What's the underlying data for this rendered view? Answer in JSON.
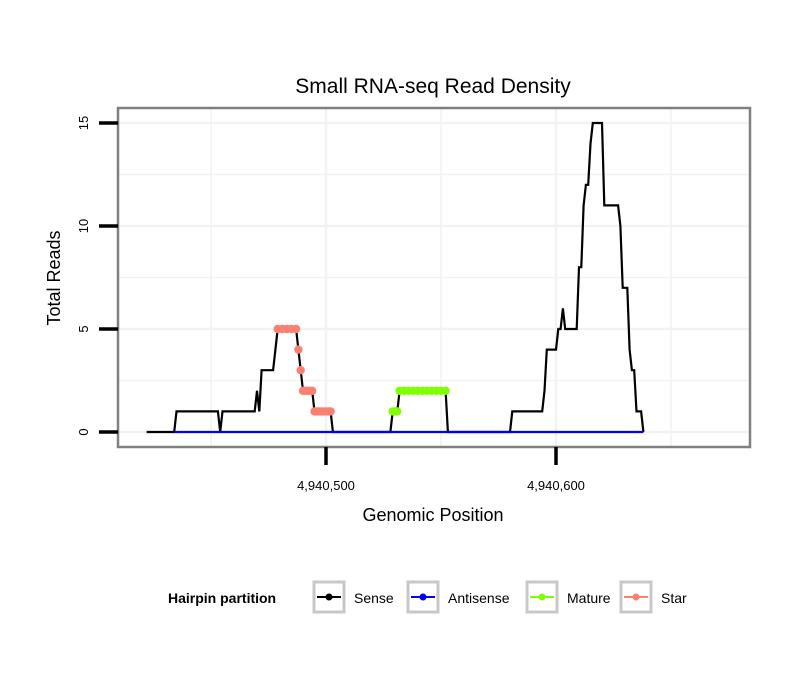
{
  "chart_data": {
    "type": "line",
    "title": "Small RNA-seq Read Density",
    "xlabel": "Genomic Position",
    "ylabel": "Total Reads",
    "xlim": [
      4940412,
      4940684
    ],
    "ylim": [
      -0.75,
      15.8
    ],
    "x_ticks": [
      {
        "value": 4940500,
        "label": "4,940,500"
      },
      {
        "value": 4940600,
        "label": "4,940,600"
      }
    ],
    "y_ticks": [
      {
        "value": 0,
        "label": "0"
      },
      {
        "value": 5,
        "label": "5"
      },
      {
        "value": 10,
        "label": "10"
      },
      {
        "value": 15,
        "label": "15"
      }
    ],
    "grid": true,
    "legend": {
      "title": "Hairpin partition",
      "position": "bottom",
      "entries": [
        {
          "name": "Sense",
          "color": "#000000"
        },
        {
          "name": "Antisense",
          "color": "#0000FF"
        },
        {
          "name": "Mature",
          "color": "#7FFF00"
        },
        {
          "name": "Star",
          "color": "#FA8072"
        }
      ]
    },
    "series": [
      {
        "name": "Sense",
        "color": "#000000",
        "style": "line",
        "points": [
          [
            4940422,
            0
          ],
          [
            4940434,
            0
          ],
          [
            4940435,
            1
          ],
          [
            4940453,
            1
          ],
          [
            4940454,
            0
          ],
          [
            4940455,
            1
          ],
          [
            4940469,
            1
          ],
          [
            4940470,
            2
          ],
          [
            4940471,
            1
          ],
          [
            4940472,
            3
          ],
          [
            4940477,
            3
          ],
          [
            4940478,
            4
          ],
          [
            4940479,
            5
          ],
          [
            4940487,
            5
          ],
          [
            4940488,
            4
          ],
          [
            4940489,
            3
          ],
          [
            4940490,
            2
          ],
          [
            4940494,
            2
          ],
          [
            4940495,
            1
          ],
          [
            4940502,
            1
          ],
          [
            4940503,
            0
          ],
          [
            4940528,
            0
          ],
          [
            4940529,
            1
          ],
          [
            4940531,
            1
          ],
          [
            4940532,
            2
          ],
          [
            4940552,
            2
          ],
          [
            4940553,
            0
          ],
          [
            4940580,
            0
          ],
          [
            4940581,
            1
          ],
          [
            4940594,
            1
          ],
          [
            4940595,
            2
          ],
          [
            4940596,
            4
          ],
          [
            4940600,
            4
          ],
          [
            4940601,
            5
          ],
          [
            4940602,
            5
          ],
          [
            4940603,
            6
          ],
          [
            4940604,
            5
          ],
          [
            4940609,
            5
          ],
          [
            4940610,
            8
          ],
          [
            4940611,
            8
          ],
          [
            4940612,
            11
          ],
          [
            4940613,
            12
          ],
          [
            4940614,
            12
          ],
          [
            4940615,
            14
          ],
          [
            4940616,
            15
          ],
          [
            4940620,
            15
          ],
          [
            4940621,
            11
          ],
          [
            4940627,
            11
          ],
          [
            4940628,
            10
          ],
          [
            4940629,
            7
          ],
          [
            4940631,
            7
          ],
          [
            4940632,
            4
          ],
          [
            4940633,
            3
          ],
          [
            4940634,
            3
          ],
          [
            4940635,
            1
          ],
          [
            4940637,
            1
          ],
          [
            4940638,
            0
          ]
        ]
      },
      {
        "name": "Antisense",
        "color": "#0000FF",
        "style": "line",
        "points": [
          [
            4940434,
            0
          ],
          [
            4940638,
            0
          ]
        ]
      },
      {
        "name": "Mature",
        "color": "#7FFF00",
        "style": "points",
        "points": [
          [
            4940529,
            1
          ],
          [
            4940530,
            1
          ],
          [
            4940531,
            1
          ],
          [
            4940532,
            2
          ],
          [
            4940534,
            2
          ],
          [
            4940536,
            2
          ],
          [
            4940538,
            2
          ],
          [
            4940540,
            2
          ],
          [
            4940542,
            2
          ],
          [
            4940544,
            2
          ],
          [
            4940546,
            2
          ],
          [
            4940548,
            2
          ],
          [
            4940550,
            2
          ],
          [
            4940552,
            2
          ]
        ]
      },
      {
        "name": "Star",
        "color": "#FA8072",
        "style": "points",
        "points": [
          [
            4940479,
            5
          ],
          [
            4940481,
            5
          ],
          [
            4940483,
            5
          ],
          [
            4940485,
            5
          ],
          [
            4940487,
            5
          ],
          [
            4940488,
            4
          ],
          [
            4940489,
            3
          ],
          [
            4940490,
            2
          ],
          [
            4940491,
            2
          ],
          [
            4940492,
            2
          ],
          [
            4940493,
            2
          ],
          [
            4940494,
            2
          ],
          [
            4940495,
            1
          ],
          [
            4940496,
            1
          ],
          [
            4940497,
            1
          ],
          [
            4940498,
            1
          ],
          [
            4940499,
            1
          ],
          [
            4940500,
            1
          ],
          [
            4940501,
            1
          ],
          [
            4940502,
            1
          ]
        ]
      }
    ]
  }
}
